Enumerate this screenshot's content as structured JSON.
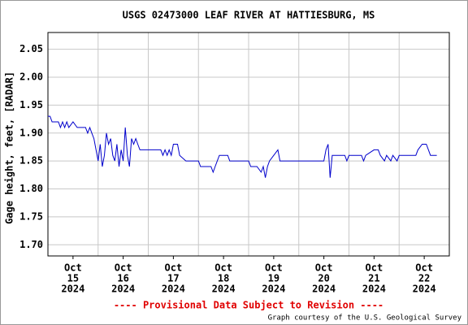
{
  "chart_data": {
    "type": "line",
    "title": "USGS 02473000 LEAF RIVER AT HATTIESBURG, MS",
    "y_label": "Gage height, feet, [RADAR]",
    "footer": "---- Provisional Data Subject to Revision ----",
    "credit": "Graph courtesy of the U.S. Geological Survey",
    "xlim": [
      "2024-10-15T00:00",
      "2024-10-23T00:00"
    ],
    "ylim": [
      1.68,
      2.08
    ],
    "yticks": [
      {
        "value": 1.7,
        "label": "1.70"
      },
      1.75,
      {
        "value": 1.8,
        "label": "1.80"
      },
      1.85,
      {
        "value": 1.9,
        "label": "1.90"
      },
      1.95,
      {
        "value": 2.0,
        "label": "2.00"
      },
      2.05
    ],
    "xticks": [
      {
        "value": "2024-10-15T12:00",
        "label": [
          "Oct",
          "15",
          "2024"
        ]
      },
      {
        "value": "2024-10-16T12:00",
        "label": [
          "Oct",
          "16",
          "2024"
        ]
      },
      {
        "value": "2024-10-17T12:00",
        "label": [
          "Oct",
          "17",
          "2024"
        ]
      },
      {
        "value": "2024-10-18T12:00",
        "label": [
          "Oct",
          "18",
          "2024"
        ]
      },
      {
        "value": "2024-10-19T12:00",
        "label": [
          "Oct",
          "19",
          "2024"
        ]
      },
      {
        "value": "2024-10-20T12:00",
        "label": [
          "Oct",
          "20",
          "2024"
        ]
      },
      {
        "value": "2024-10-21T12:00",
        "label": [
          "Oct",
          "21",
          "2024"
        ]
      },
      {
        "value": "2024-10-22T12:00",
        "label": [
          "Oct",
          "22",
          "2024"
        ]
      }
    ],
    "xgrid": [
      "2024-10-16T00:00",
      "2024-10-17T00:00",
      "2024-10-18T00:00",
      "2024-10-19T00:00",
      "2024-10-20T00:00",
      "2024-10-21T00:00",
      "2024-10-22T00:00"
    ],
    "grid": true,
    "color": "#0000cc",
    "x": [
      "2024-10-15T00:00",
      "2024-10-15T01:00",
      "2024-10-15T02:00",
      "2024-10-15T05:00",
      "2024-10-15T06:00",
      "2024-10-15T07:00",
      "2024-10-15T08:00",
      "2024-10-15T09:00",
      "2024-10-15T10:00",
      "2024-10-15T12:00",
      "2024-10-15T14:00",
      "2024-10-15T18:00",
      "2024-10-15T19:00",
      "2024-10-15T20:00",
      "2024-10-15T21:00",
      "2024-10-15T22:00",
      "2024-10-15T23:00",
      "2024-10-16T00:00",
      "2024-10-16T01:00",
      "2024-10-16T02:00",
      "2024-10-16T03:00",
      "2024-10-16T04:00",
      "2024-10-16T05:00",
      "2024-10-16T06:00",
      "2024-10-16T07:00",
      "2024-10-16T08:00",
      "2024-10-16T09:00",
      "2024-10-16T10:00",
      "2024-10-16T11:00",
      "2024-10-16T12:00",
      "2024-10-16T13:00",
      "2024-10-16T14:00",
      "2024-10-16T15:00",
      "2024-10-16T16:00",
      "2024-10-16T17:00",
      "2024-10-16T18:00",
      "2024-10-16T19:00",
      "2024-10-16T20:00",
      "2024-10-17T02:00",
      "2024-10-17T06:00",
      "2024-10-17T07:00",
      "2024-10-17T08:00",
      "2024-10-17T09:00",
      "2024-10-17T10:00",
      "2024-10-17T11:00",
      "2024-10-17T12:00",
      "2024-10-17T14:00",
      "2024-10-17T15:00",
      "2024-10-17T18:00",
      "2024-10-18T00:00",
      "2024-10-18T01:00",
      "2024-10-18T06:00",
      "2024-10-18T07:00",
      "2024-10-18T08:00",
      "2024-10-18T09:00",
      "2024-10-18T10:00",
      "2024-10-18T14:00",
      "2024-10-18T15:00",
      "2024-10-19T00:00",
      "2024-10-19T01:00",
      "2024-10-19T04:00",
      "2024-10-19T06:00",
      "2024-10-19T07:00",
      "2024-10-19T08:00",
      "2024-10-19T09:00",
      "2024-10-19T10:00",
      "2024-10-19T12:00",
      "2024-10-19T14:00",
      "2024-10-19T15:00",
      "2024-10-20T12:00",
      "2024-10-20T13:00",
      "2024-10-20T14:00",
      "2024-10-20T15:00",
      "2024-10-20T16:00",
      "2024-10-20T22:00",
      "2024-10-20T23:00",
      "2024-10-21T00:00",
      "2024-10-21T06:00",
      "2024-10-21T07:00",
      "2024-10-21T08:00",
      "2024-10-21T12:00",
      "2024-10-21T14:00",
      "2024-10-21T15:00",
      "2024-10-21T17:00",
      "2024-10-21T18:00",
      "2024-10-21T20:00",
      "2024-10-21T21:00",
      "2024-10-21T23:00",
      "2024-10-22T00:00",
      "2024-10-22T08:00",
      "2024-10-22T09:00",
      "2024-10-22T11:00",
      "2024-10-22T13:00",
      "2024-10-22T14:00",
      "2024-10-22T15:00",
      "2024-10-22T18:00"
    ],
    "values": [
      1.93,
      1.93,
      1.92,
      1.92,
      1.91,
      1.92,
      1.91,
      1.92,
      1.91,
      1.92,
      1.91,
      1.91,
      1.9,
      1.91,
      1.9,
      1.89,
      1.87,
      1.85,
      1.88,
      1.84,
      1.86,
      1.9,
      1.88,
      1.89,
      1.86,
      1.85,
      1.88,
      1.84,
      1.87,
      1.85,
      1.91,
      1.86,
      1.84,
      1.89,
      1.88,
      1.89,
      1.88,
      1.87,
      1.87,
      1.87,
      1.86,
      1.87,
      1.86,
      1.87,
      1.86,
      1.88,
      1.88,
      1.86,
      1.85,
      1.85,
      1.84,
      1.84,
      1.83,
      1.84,
      1.85,
      1.86,
      1.86,
      1.85,
      1.85,
      1.84,
      1.84,
      1.83,
      1.84,
      1.82,
      1.84,
      1.85,
      1.86,
      1.87,
      1.85,
      1.85,
      1.87,
      1.88,
      1.82,
      1.86,
      1.86,
      1.85,
      1.86,
      1.86,
      1.85,
      1.86,
      1.87,
      1.87,
      1.86,
      1.85,
      1.86,
      1.85,
      1.86,
      1.85,
      1.86,
      1.86,
      1.87,
      1.88,
      1.88,
      1.87,
      1.86,
      1.86
    ]
  }
}
